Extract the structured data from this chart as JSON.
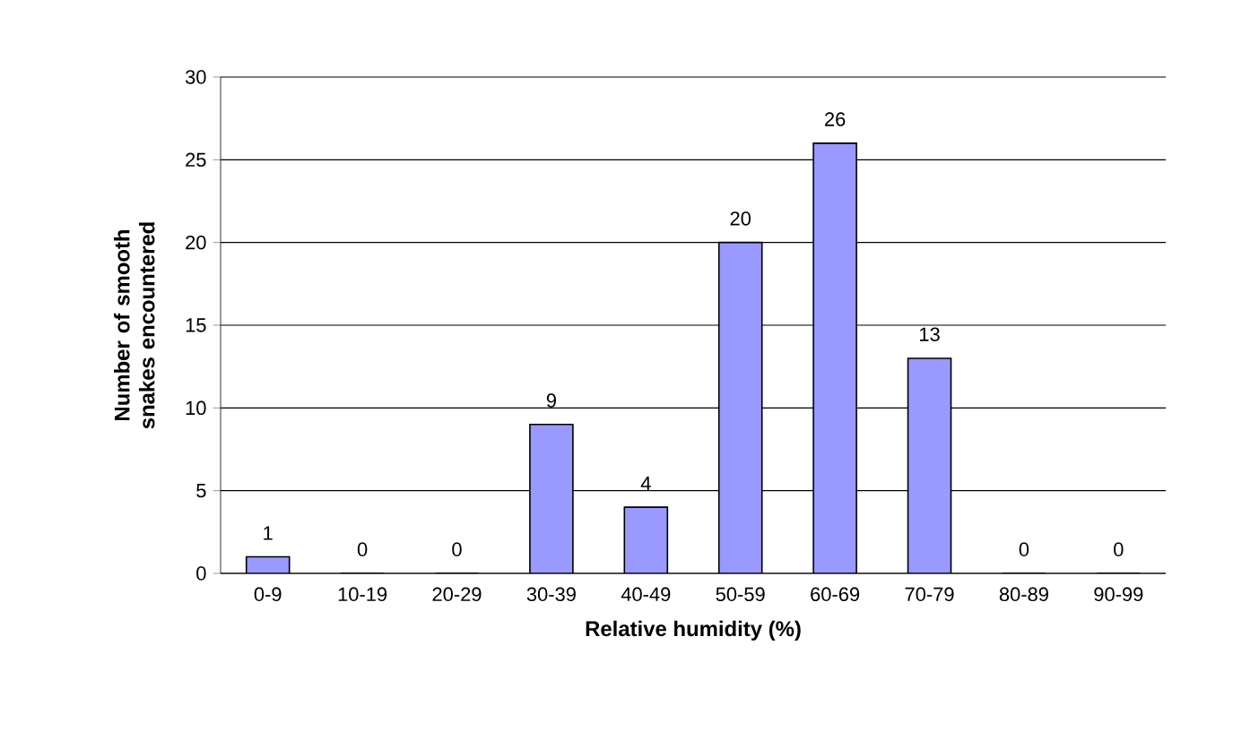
{
  "chart_data": {
    "type": "bar",
    "xlabel": "Relative humidity (%)",
    "ylabel": "Number of smooth snakes encountered",
    "categories": [
      "0-9",
      "10-19",
      "20-29",
      "30-39",
      "40-49",
      "50-59",
      "60-69",
      "70-79",
      "80-89",
      "90-99"
    ],
    "values": [
      1,
      0,
      0,
      9,
      4,
      20,
      26,
      13,
      0,
      0
    ],
    "color": "#9999ff",
    "ylim": [
      0,
      30
    ],
    "yticks": [
      0,
      5,
      10,
      15,
      20,
      25,
      30
    ],
    "grid": "y",
    "data_labels": true
  }
}
